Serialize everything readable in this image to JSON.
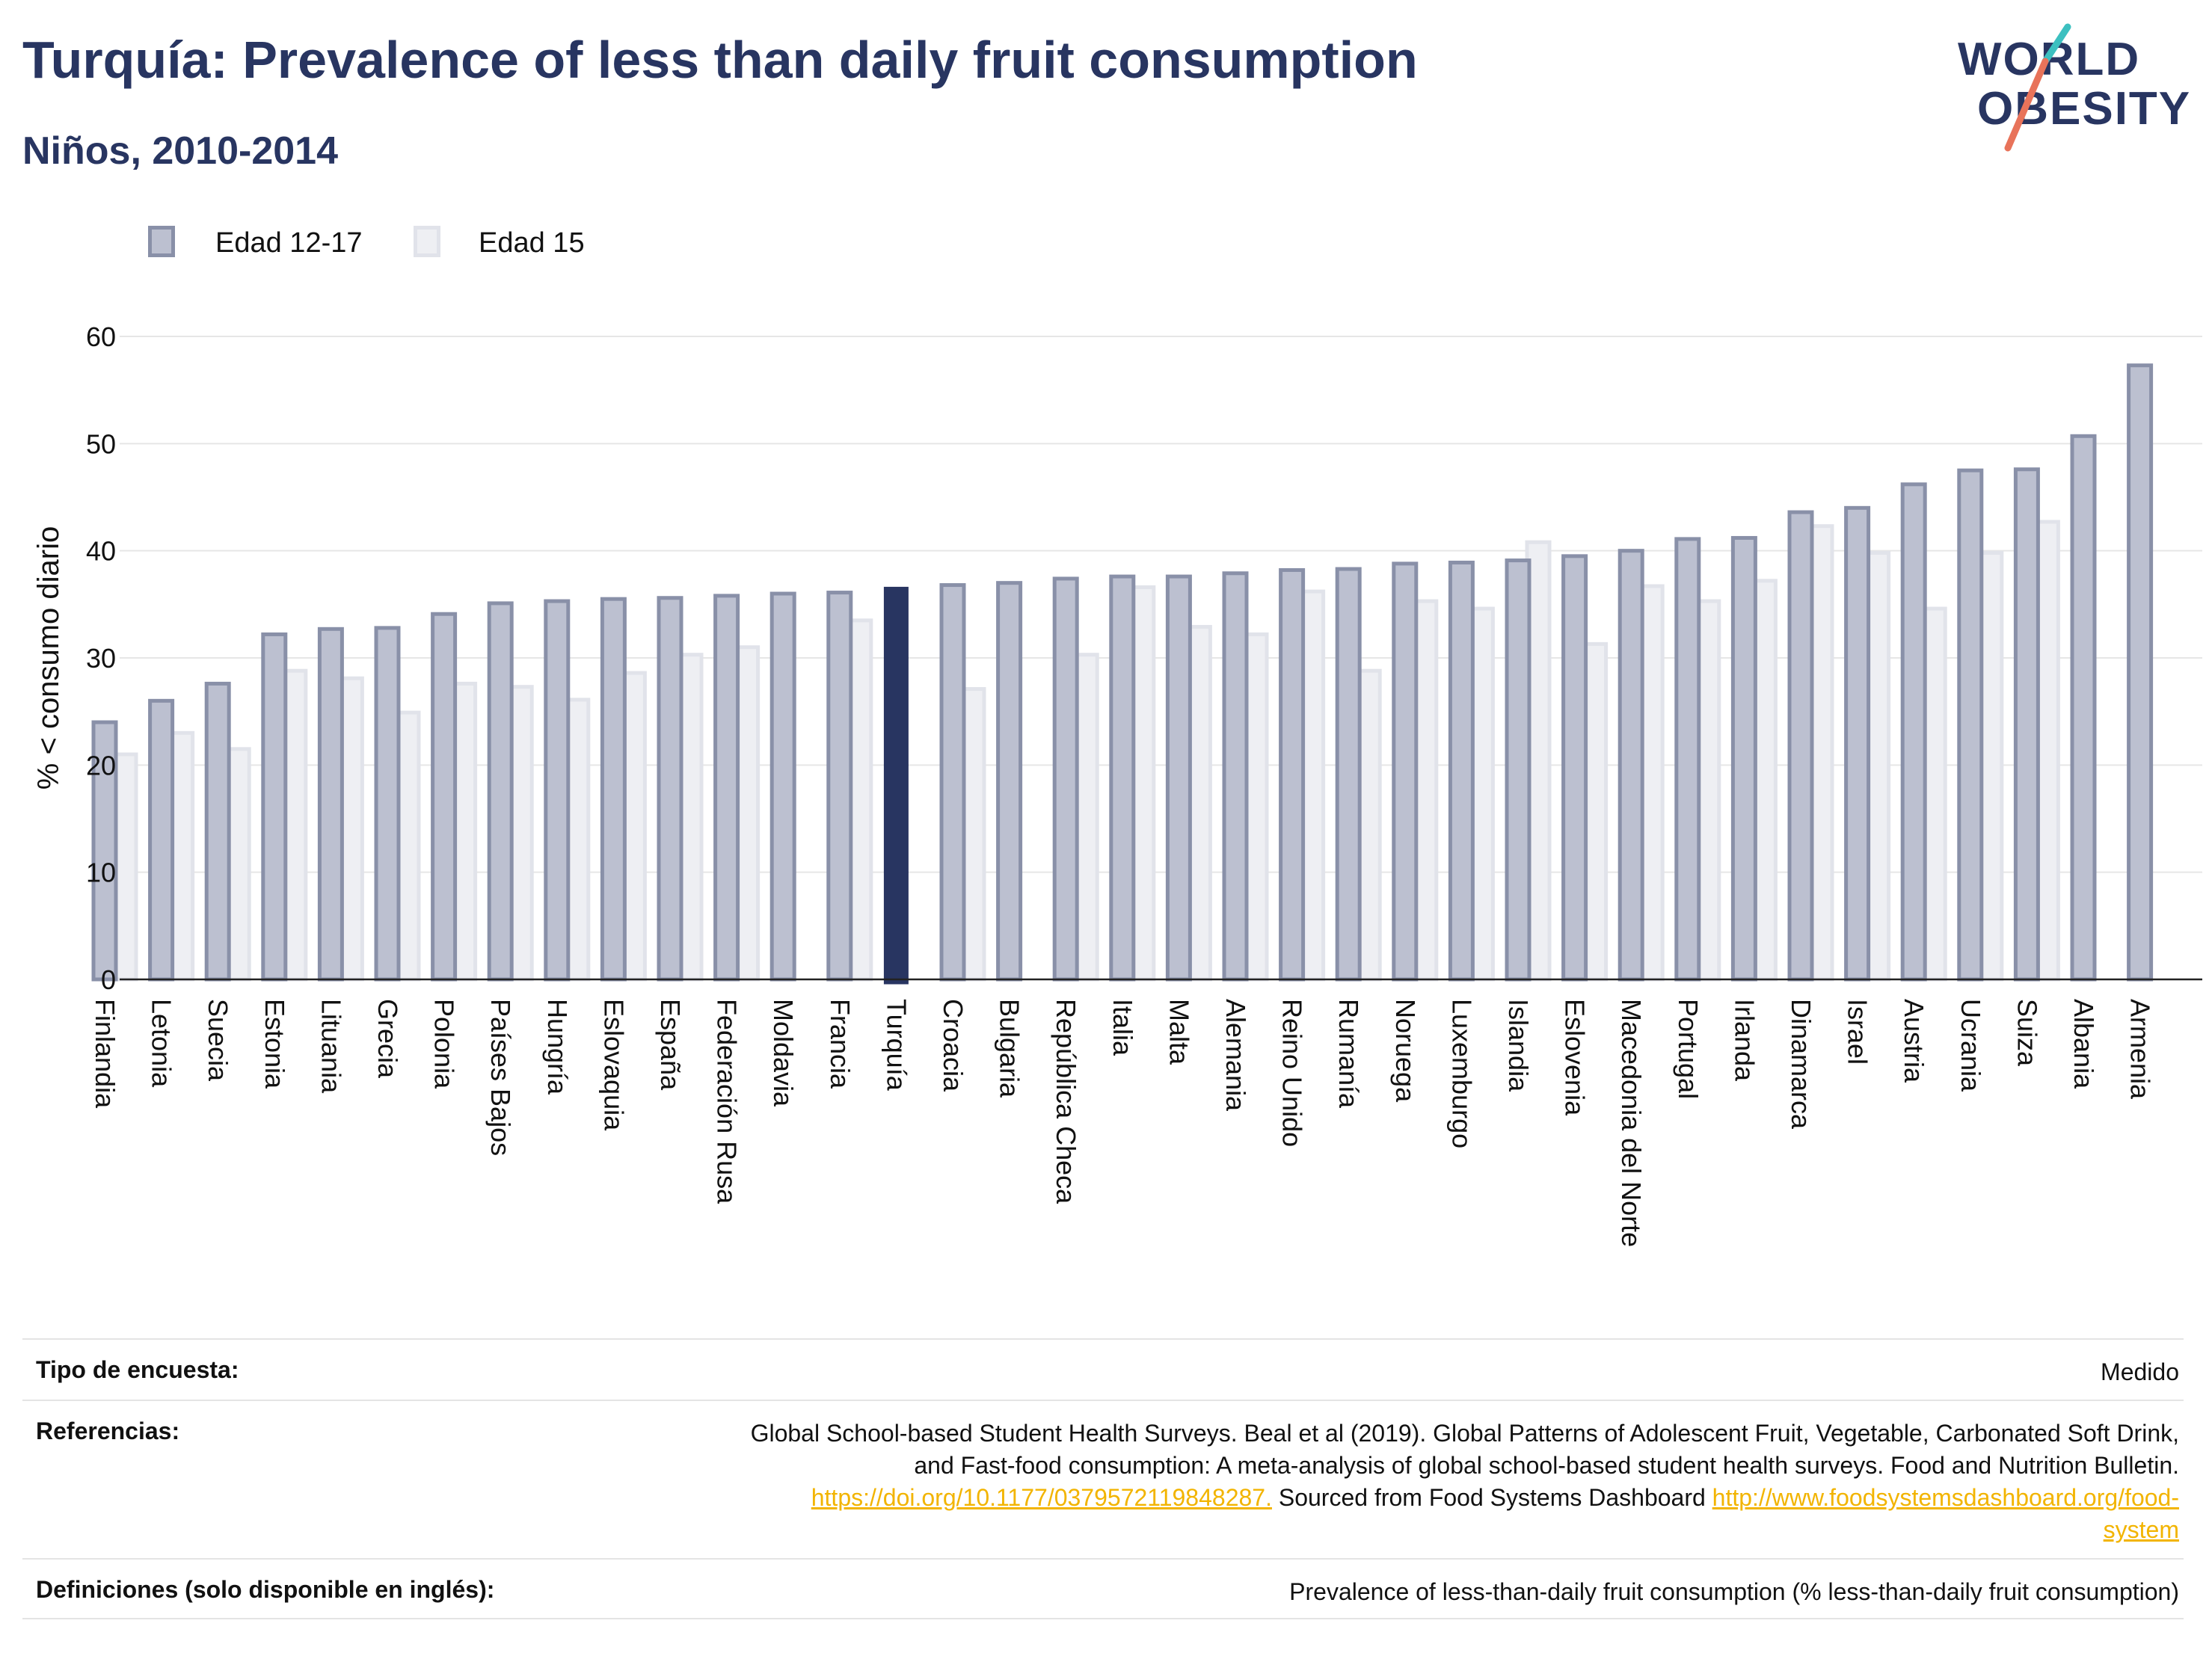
{
  "header": {
    "title": "Turquía: Prevalence of less than daily fruit consumption",
    "subtitle": "Niños, 2010-2014"
  },
  "logo": {
    "line1": "WORLD",
    "line2": "OBESITY",
    "slash_colors": [
      "#3cc0c0",
      "#e8735a"
    ],
    "text_color": "#283561"
  },
  "legend": [
    {
      "label": "Edad 12-17",
      "fill": "#bcc0d0",
      "stroke": "#8990a8"
    },
    {
      "label": "Edad 15",
      "fill": "#eeeff3",
      "stroke": "#e1e3ea"
    }
  ],
  "chart_data": {
    "type": "bar",
    "ylabel": "% < consumo diario",
    "xlabel": "",
    "ylim": [
      0,
      60
    ],
    "yticks": [
      0,
      10,
      20,
      30,
      40,
      50,
      60
    ],
    "grid": true,
    "highlight": "Turquía",
    "highlight_color": "#283561",
    "categories": [
      "Finlandia",
      "Letonia",
      "Suecia",
      "Estonia",
      "Lituania",
      "Grecia",
      "Polonia",
      "Países Bajos",
      "Hungría",
      "Eslovaquia",
      "España",
      "Federación Rusa",
      "Moldavia",
      "Francia",
      "Turquía",
      "Croacia",
      "Bulgaria",
      "República Checa",
      "Italia",
      "Malta",
      "Alemania",
      "Reino Unido",
      "Rumanía",
      "Noruega",
      "Luxemburgo",
      "Islandia",
      "Eslovenia",
      "Macedonia del Norte",
      "Portugal",
      "Irlanda",
      "Dinamarca",
      "Israel",
      "Austria",
      "Ucrania",
      "Suiza",
      "Albania",
      "Armenia"
    ],
    "series": [
      {
        "name": "Edad 12-17",
        "values": [
          24.0,
          26.0,
          27.6,
          32.2,
          32.7,
          32.8,
          34.1,
          35.1,
          35.3,
          35.5,
          35.6,
          35.8,
          36.0,
          36.1,
          36.6,
          36.8,
          37.0,
          37.4,
          37.6,
          37.6,
          37.9,
          38.2,
          38.3,
          38.8,
          38.9,
          39.1,
          39.5,
          40.0,
          41.1,
          41.2,
          43.6,
          44.0,
          46.2,
          47.5,
          47.6,
          50.7,
          57.3
        ]
      },
      {
        "name": "Edad 15",
        "values": [
          21.0,
          23.0,
          21.5,
          28.8,
          28.1,
          24.9,
          27.6,
          27.3,
          26.1,
          28.6,
          30.3,
          31.0,
          null,
          33.5,
          null,
          27.1,
          null,
          30.3,
          36.6,
          32.9,
          32.2,
          36.2,
          28.8,
          35.3,
          34.6,
          40.8,
          31.3,
          36.7,
          35.3,
          37.2,
          42.3,
          39.8,
          34.6,
          39.8,
          42.7,
          null,
          null
        ]
      }
    ]
  },
  "info": {
    "rows": [
      {
        "key": "Tipo de encuesta:",
        "value": "Medido"
      },
      {
        "key": "Referencias:",
        "ref_text1": "Global School-based Student Health Surveys. Beal et al (2019). Global Patterns of Adolescent Fruit, Vegetable, Carbonated Soft Drink,",
        "ref_text2": "and Fast-food consumption: A meta-analysis of global school-based student health surveys. Food and Nutrition Bulletin.",
        "ref_link1": "https://doi.org/10.1177/0379572119848287.",
        "ref_mid": " Sourced from Food Systems Dashboard ",
        "ref_link2a": "http://www.foodsystemsdashboard.org/food-",
        "ref_link2b": "system"
      },
      {
        "key": "Definiciones (solo disponible en inglés):",
        "value": "Prevalence of less-than-daily fruit consumption (% less-than-daily fruit consumption)"
      }
    ],
    "link_color": "#f2b400"
  }
}
